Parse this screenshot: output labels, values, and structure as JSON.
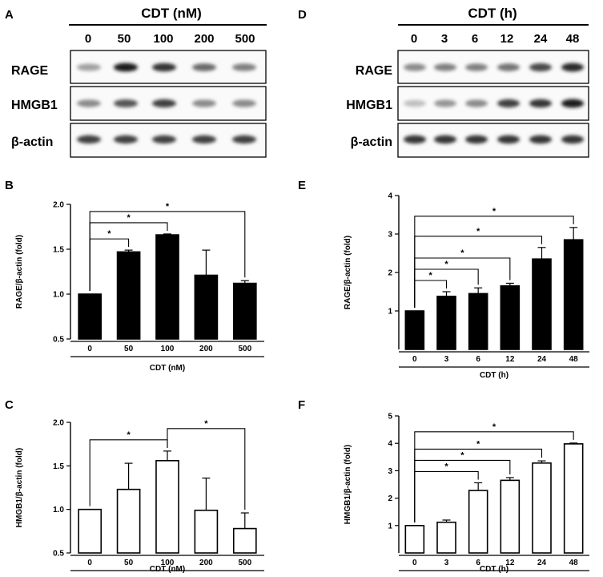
{
  "panel_labels": {
    "A": "A",
    "B": "B",
    "C": "C",
    "D": "D",
    "E": "E",
    "F": "F"
  },
  "blots": {
    "left": {
      "title": "CDT (nM)",
      "lanes": [
        "0",
        "50",
        "100",
        "200",
        "500"
      ],
      "rows": [
        "RAGE",
        "HMGB1",
        "β-actin"
      ],
      "intensity": [
        [
          0.35,
          0.95,
          0.85,
          0.6,
          0.5
        ],
        [
          0.45,
          0.7,
          0.8,
          0.45,
          0.45
        ],
        [
          0.8,
          0.8,
          0.8,
          0.8,
          0.8
        ]
      ]
    },
    "right": {
      "title": "CDT (h)",
      "lanes": [
        "0",
        "3",
        "6",
        "12",
        "24",
        "48"
      ],
      "rows": [
        "RAGE",
        "HMGB1",
        "β-actin"
      ],
      "intensity": [
        [
          0.45,
          0.5,
          0.5,
          0.55,
          0.75,
          0.9
        ],
        [
          0.2,
          0.4,
          0.45,
          0.8,
          0.85,
          0.95
        ],
        [
          0.85,
          0.85,
          0.85,
          0.85,
          0.85,
          0.85
        ]
      ]
    }
  },
  "chart_data": [
    {
      "panel": "B",
      "type": "bar",
      "fill": "#000000",
      "categories": [
        "0",
        "50",
        "100",
        "200",
        "500"
      ],
      "values": [
        1.0,
        1.47,
        1.66,
        1.21,
        1.12
      ],
      "errors": [
        0.0,
        0.02,
        0.01,
        0.28,
        0.03
      ],
      "xlabel": "CDT (nM)",
      "ylabel": "RAGE/β-actin (fold)",
      "ylim": [
        0.5,
        2.0
      ],
      "yticks": [
        "0.5",
        "1.0",
        "1.5",
        "2.0"
      ],
      "significance": [
        {
          "from": 0,
          "to": 1,
          "label": "*"
        },
        {
          "from": 0,
          "to": 2,
          "label": "*"
        },
        {
          "from": 0,
          "to": 4,
          "label": "*"
        }
      ]
    },
    {
      "panel": "C",
      "type": "bar",
      "fill": "#ffffff",
      "categories": [
        "0",
        "50",
        "100",
        "200",
        "500"
      ],
      "values": [
        1.0,
        1.23,
        1.56,
        0.99,
        0.78
      ],
      "errors": [
        0.0,
        0.3,
        0.11,
        0.37,
        0.18
      ],
      "xlabel": "CDT (nM)",
      "ylabel": "HMGB1/β-actin (fold)",
      "ylim": [
        0.5,
        2.0
      ],
      "yticks": [
        "0.5",
        "1.0",
        "1.5",
        "2.0"
      ],
      "significance": [
        {
          "from": 0,
          "to": 2,
          "label": "*"
        },
        {
          "from": 2,
          "to": 4,
          "label": "*"
        }
      ]
    },
    {
      "panel": "E",
      "type": "bar",
      "fill": "#000000",
      "categories": [
        "0",
        "3",
        "6",
        "12",
        "24",
        "48"
      ],
      "values": [
        1.0,
        1.38,
        1.45,
        1.65,
        2.35,
        2.85
      ],
      "errors": [
        0.0,
        0.12,
        0.15,
        0.07,
        0.3,
        0.32
      ],
      "xlabel": "CDT (h)",
      "ylabel": "RAGE/β-actin (fold)",
      "ylim": [
        0,
        4
      ],
      "yticks": [
        "1",
        "2",
        "3",
        "4"
      ],
      "significance": [
        {
          "from": 0,
          "to": 1,
          "label": "*"
        },
        {
          "from": 0,
          "to": 2,
          "label": "*"
        },
        {
          "from": 0,
          "to": 3,
          "label": "*"
        },
        {
          "from": 0,
          "to": 4,
          "label": "*"
        },
        {
          "from": 0,
          "to": 5,
          "label": "*"
        }
      ]
    },
    {
      "panel": "F",
      "type": "bar",
      "fill": "#ffffff",
      "categories": [
        "0",
        "3",
        "6",
        "12",
        "24",
        "48"
      ],
      "values": [
        1.0,
        1.12,
        2.28,
        2.65,
        3.28,
        3.98
      ],
      "errors": [
        0.0,
        0.08,
        0.28,
        0.1,
        0.08,
        0.03
      ],
      "xlabel": "CDT (h)",
      "ylabel": "HMGB1/β-actin (fold)",
      "ylim": [
        0,
        5
      ],
      "yticks": [
        "1",
        "2",
        "3",
        "4",
        "5"
      ],
      "significance": [
        {
          "from": 0,
          "to": 2,
          "label": "*"
        },
        {
          "from": 0,
          "to": 3,
          "label": "*"
        },
        {
          "from": 0,
          "to": 4,
          "label": "*"
        },
        {
          "from": 0,
          "to": 5,
          "label": "*"
        }
      ]
    }
  ]
}
